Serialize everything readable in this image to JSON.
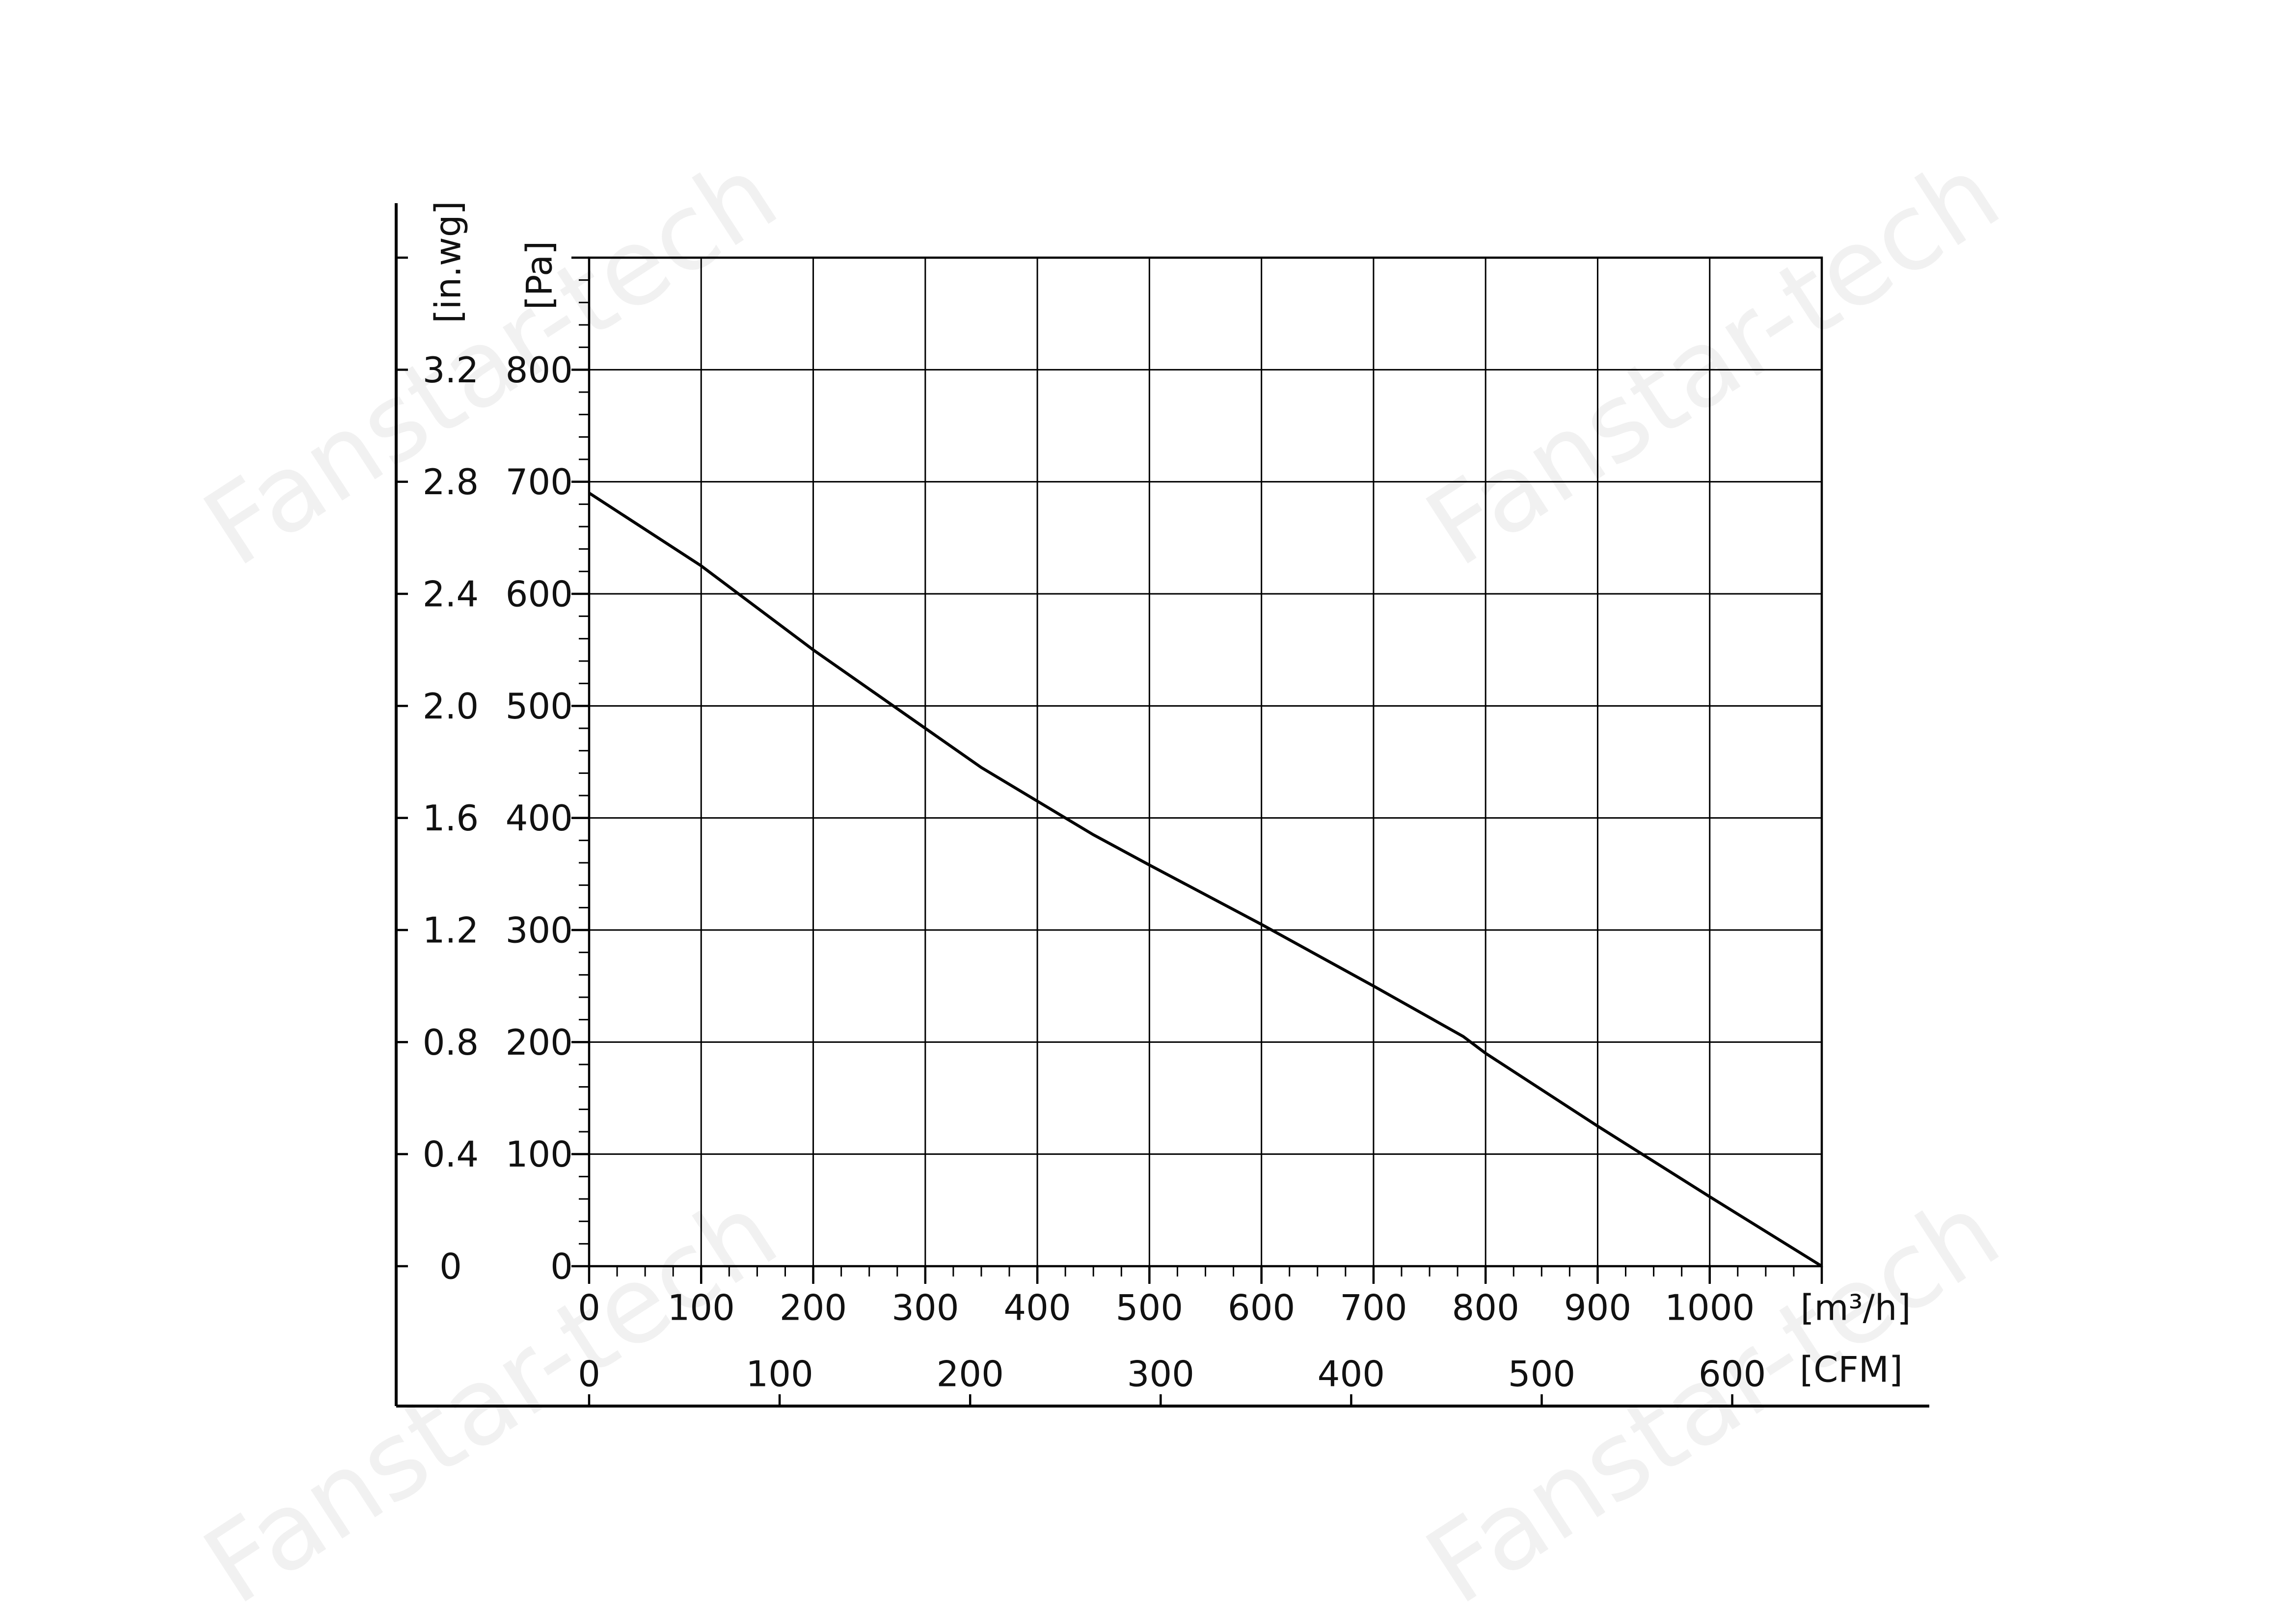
{
  "chart_data": {
    "type": "line",
    "watermark": "Fanstar-tech",
    "ylabel": "[Pa]",
    "y2label": "[in.wg]",
    "xlabel": "[m³/h]",
    "x2label": "[CFM]",
    "x": [
      0,
      100,
      200,
      300,
      350,
      400,
      450,
      500,
      600,
      700,
      780,
      800,
      900,
      1000,
      1100
    ],
    "series": [
      {
        "color": "#000000",
        "values": [
          690,
          625,
          550,
          480,
          445,
          415,
          385,
          358,
          305,
          250,
          205,
          190,
          125,
          62,
          0
        ]
      }
    ],
    "xlim": [
      0,
      1100
    ],
    "xticks": [
      0,
      100,
      200,
      300,
      400,
      500,
      600,
      700,
      800,
      900,
      1000
    ],
    "x2lim": [
      0,
      647
    ],
    "x2ticks": [
      0,
      100,
      200,
      300,
      400,
      500,
      600
    ],
    "ylim": [
      0,
      900
    ],
    "yticks": [
      0,
      100,
      200,
      300,
      400,
      500,
      600,
      700,
      800
    ],
    "y2lim": [
      0,
      3.6
    ],
    "y2ticks": [
      0,
      0.4,
      0.8,
      1.2,
      1.6,
      {
        "value": 2.0,
        "label": "2.0"
      },
      2.4,
      2.8,
      3.2
    ],
    "grid": true
  }
}
